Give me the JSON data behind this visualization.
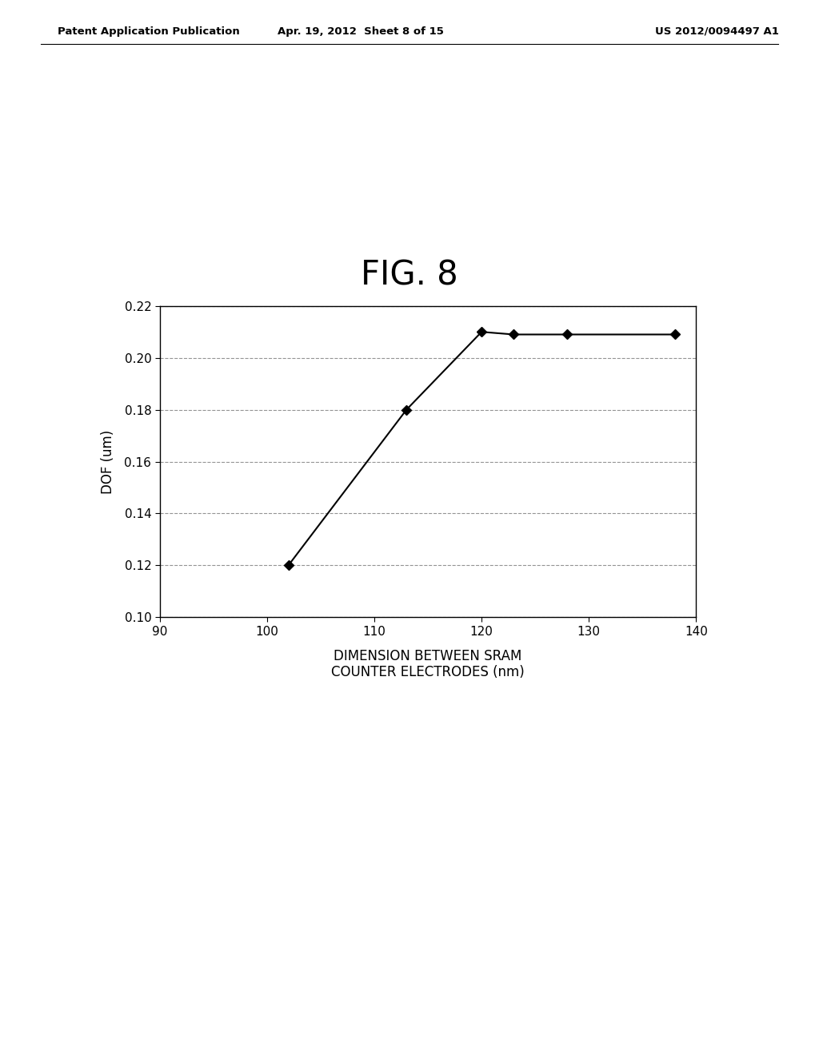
{
  "title": "FIG. 8",
  "header_left": "Patent Application Publication",
  "header_center": "Apr. 19, 2012  Sheet 8 of 15",
  "header_right": "US 2012/0094497 A1",
  "x_data": [
    102,
    113,
    120,
    123,
    128,
    138
  ],
  "y_data": [
    0.12,
    0.18,
    0.21,
    0.209,
    0.209,
    0.209
  ],
  "xlabel_line1": "DIMENSION BETWEEN SRAM",
  "xlabel_line2": "COUNTER ELECTRODES (nm)",
  "ylabel": "DOF (um)",
  "xlim": [
    90,
    140
  ],
  "ylim": [
    0.1,
    0.22
  ],
  "xticks": [
    90,
    100,
    110,
    120,
    130,
    140
  ],
  "yticks": [
    0.1,
    0.12,
    0.14,
    0.16,
    0.18,
    0.2,
    0.22
  ],
  "line_color": "#000000",
  "marker": "D",
  "marker_size": 6,
  "marker_facecolor": "#000000",
  "grid_color": "#888888",
  "background_color": "#ffffff",
  "title_fontsize": 30,
  "axis_label_fontsize": 12,
  "tick_fontsize": 11,
  "header_fontsize": 9.5
}
